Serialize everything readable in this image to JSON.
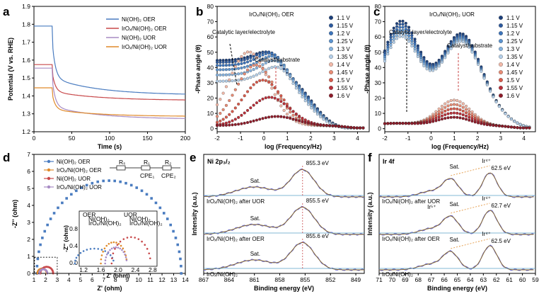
{
  "chart_data": [
    {
      "id": "a",
      "panel": "a",
      "type": "line",
      "xlabel": "Time (s)",
      "ylabel": "Potential (V vs. RHE)",
      "xlim": [
        0,
        200
      ],
      "ylim": [
        1.2,
        1.9
      ],
      "xticks": [
        "0",
        "50",
        "100",
        "150",
        "200"
      ],
      "yticks": [
        "1.2",
        "1.3",
        "1.4",
        "1.5",
        "1.6",
        "1.7",
        "1.8",
        "1.9"
      ],
      "legend": [
        "Ni(OH)₂ OER",
        "IrOₓ/Ni(OH)₂ OER",
        "Ni(OH)₂ UOR",
        "IrOₓ/Ni(OH)₂ UOR"
      ],
      "series": [
        {
          "name": "Ni(OH)₂ OER",
          "color": "#4a7cc0",
          "start": 1.79,
          "end": 1.405
        },
        {
          "name": "IrOₓ/Ni(OH)₂ OER",
          "color": "#c8484a",
          "start": 1.575,
          "end": 1.375
        },
        {
          "name": "Ni(OH)₂ UOR",
          "color": "#a78bc4",
          "start": 1.555,
          "end": 1.27
        },
        {
          "name": "IrOₓ/Ni(OH)₂ UOR",
          "color": "#e08a2a",
          "start": 1.445,
          "end": 1.285
        }
      ]
    },
    {
      "id": "b",
      "panel": "b",
      "type": "scatter",
      "title": "IrOₓ/Ni(OH)₂ OER",
      "xlabel": "log (Frequency/Hz)",
      "ylabel": "-Phase angle (θ)",
      "xlim": [
        -2,
        4.5
      ],
      "ylim": [
        -2,
        80
      ],
      "xticks": [
        "-2",
        "-1",
        "0",
        "1",
        "2",
        "3",
        "4"
      ],
      "yticks": [
        "0",
        "10",
        "20",
        "30",
        "40",
        "50",
        "60",
        "70",
        "80"
      ],
      "annotations": [
        "Catalytic layer/electrolyte",
        "Catalyst/substrate"
      ],
      "legend": [
        "1.1 V",
        "1.15 V",
        "1.2 V",
        "1.25 V",
        "1.3 V",
        "1.35 V",
        "1.4 V",
        "1.45 V",
        "1.5 V",
        "1.55 V",
        "1.6 V"
      ]
    },
    {
      "id": "c",
      "panel": "c",
      "type": "scatter",
      "title": "IrOₓ/Ni(OH)₂ UOR",
      "xlabel": "log (Frequency/Hz)",
      "ylabel": "-Phase angle (θ)",
      "xlim": [
        -2,
        4.5
      ],
      "ylim": [
        -2,
        80
      ],
      "xticks": [
        "-2",
        "-1",
        "0",
        "1",
        "2",
        "3",
        "4"
      ],
      "yticks": [
        "0",
        "10",
        "20",
        "30",
        "40",
        "50",
        "60",
        "70",
        "80"
      ],
      "annotations": [
        "Catalytic layer/electrolyte",
        "Catalyst/substrate"
      ],
      "legend": [
        "1.1 V",
        "1.15 V",
        "1.2 V",
        "1.25 V",
        "1.3 V",
        "1.35 V",
        "1.4 V",
        "1.45 V",
        "1.5 V",
        "1.55 V",
        "1.6 V"
      ]
    },
    {
      "id": "d",
      "panel": "d",
      "type": "scatter",
      "xlabel": "Z' (ohm)",
      "ylabel": "-Z'' (ohm)",
      "xlim": [
        1,
        14
      ],
      "ylim": [
        0,
        7
      ],
      "xticks": [
        "1",
        "2",
        "3",
        "4",
        "5",
        "6",
        "7",
        "8",
        "9",
        "10",
        "11",
        "12",
        "13",
        "14"
      ],
      "yticks": [
        "0",
        "1",
        "2",
        "3",
        "4",
        "5",
        "6",
        "7"
      ],
      "legend": [
        "Ni(OH)₂ OER",
        "IrOₓ/Ni(OH)₂ OER",
        "Ni(OH)₂ UOR",
        "IrOₓ/Ni(OH)₂ UOR"
      ],
      "circuit_labels": [
        "Rₛ",
        "R₁",
        "R₂",
        "CPE₁",
        "CPE₂"
      ],
      "inset": {
        "xlabel": "Z' (ohm)",
        "ylabel": "-Z'' (ohm)",
        "xticks": [
          "1.2",
          "1.6",
          "2.0",
          "2.4",
          "2.8"
        ],
        "yticks": [
          "0.0",
          "0.4",
          "0.8"
        ],
        "legend_groups": [
          "OER",
          "UOR"
        ],
        "legend": [
          "Ni(OH)₂",
          "IrOₓ/Ni(OH)₂",
          "Ni(OH)₂",
          "IrOₓ/Ni(OH)₂"
        ]
      }
    },
    {
      "id": "e",
      "panel": "e",
      "type": "line",
      "title": "Ni 2p₃/₂",
      "xlabel": "Binding energy (eV)",
      "ylabel": "Intensity (a.u.)",
      "xlim": [
        867,
        848
      ],
      "xticks": [
        "867",
        "864",
        "861",
        "858",
        "855",
        "852",
        "849"
      ],
      "peak_labels": [
        "855.3 eV",
        "855.5 eV",
        "855.6 eV"
      ],
      "sat_labels": [
        "Sat.",
        "Sat.",
        "Sat."
      ],
      "sample_labels": [
        "IrOₓ/Ni(OH)₂ after UOR",
        "IrOₓ/Ni(OH)₂ after OER",
        "IrOₓ/Ni(OH)₂"
      ]
    },
    {
      "id": "f",
      "panel": "f",
      "type": "line",
      "title": "Ir 4f",
      "xlabel": "Binding energy (eV)",
      "ylabel": "Intensity (a.u.)",
      "xlim": [
        71,
        59
      ],
      "xticks": [
        "71",
        "70",
        "69",
        "68",
        "67",
        "66",
        "65",
        "64",
        "63",
        "62",
        "61",
        "60",
        "59"
      ],
      "peak_labels": [
        "62.5 eV",
        "62.7 eV",
        "62.5 eV"
      ],
      "ion_labels": [
        "Ir⁴⁺",
        "Ir⁵⁺",
        "Ir⁴⁺",
        "Ir⁴⁺"
      ],
      "sat_labels": [
        "Sat.",
        "Sat.",
        "Sat."
      ],
      "sample_labels": [
        "IrOₓ/Ni(OH)₂ after UOR",
        "IrOₓ/Ni(OH)₂ after OER",
        "IrOₓ/Ni(OH)₂"
      ]
    }
  ]
}
